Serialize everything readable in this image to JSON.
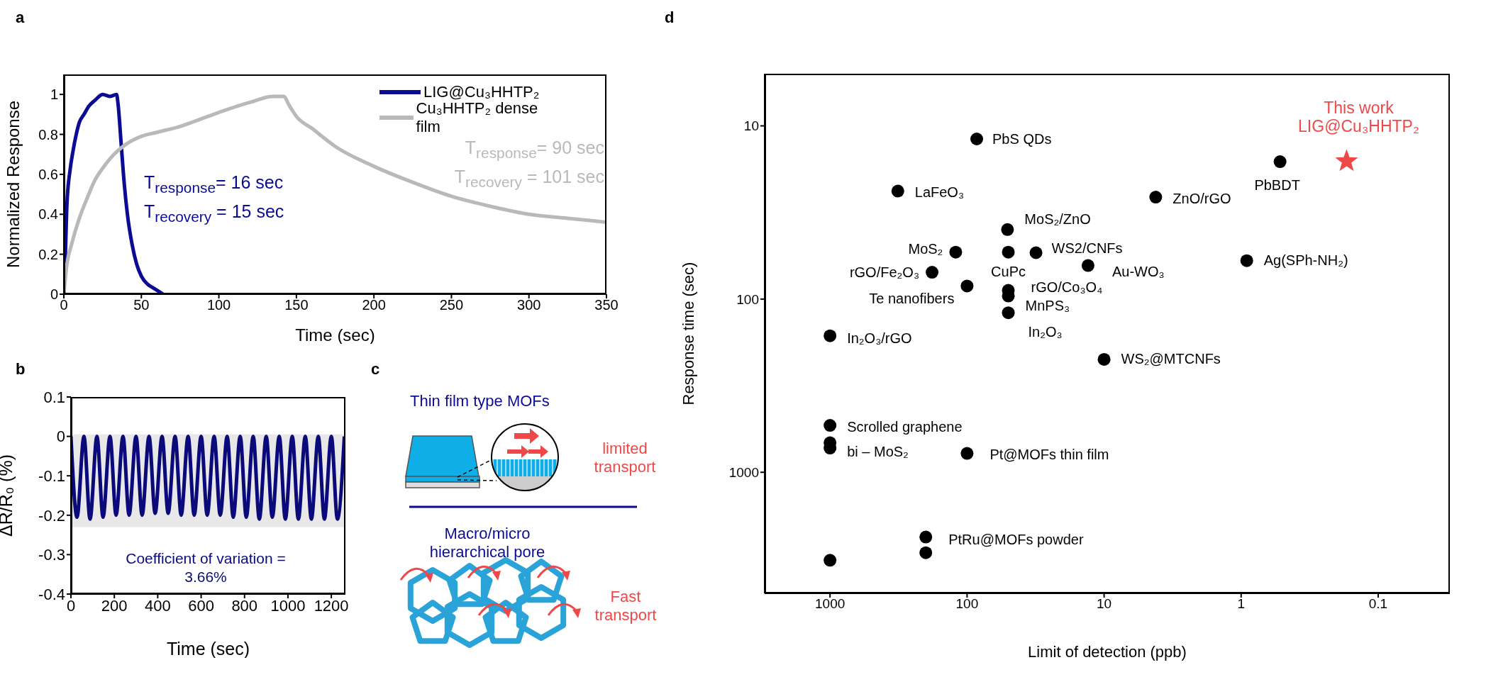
{
  "chart_data": [
    {
      "type": "line",
      "title": "a",
      "xlabel": "Time (sec)",
      "ylabel": "Normalized Response",
      "xlim": [
        0,
        350
      ],
      "xticks": [
        0,
        50,
        100,
        150,
        200,
        250,
        300,
        350
      ],
      "ylim": [
        0,
        1.1
      ],
      "yticks": [
        0,
        0.2,
        0.4,
        0.6,
        0.8,
        1
      ],
      "legend": "top right",
      "series": [
        {
          "name": "LIG@Cu₃HHTP₂",
          "color": "#0b0b94",
          "x": [
            0,
            1,
            2,
            4,
            6,
            8,
            10,
            13,
            16,
            20,
            25,
            30,
            34,
            35,
            37,
            39,
            41,
            44,
            47,
            50,
            54,
            58,
            62,
            64
          ],
          "values": [
            0,
            0.2,
            0.45,
            0.62,
            0.72,
            0.8,
            0.86,
            0.9,
            0.94,
            0.97,
            1,
            0.99,
            1,
            0.95,
            0.75,
            0.55,
            0.4,
            0.25,
            0.15,
            0.09,
            0.05,
            0.03,
            0.01,
            0
          ]
        },
        {
          "name": "Cu₃HHTP₂ dense film",
          "color": "#b9b9b9",
          "x": [
            0,
            2,
            5,
            10,
            15,
            20,
            25,
            30,
            40,
            50,
            60,
            75,
            100,
            120,
            135,
            142,
            145,
            150,
            160,
            175,
            200,
            225,
            250,
            275,
            300,
            325,
            350
          ],
          "values": [
            0,
            0.15,
            0.25,
            0.38,
            0.48,
            0.57,
            0.63,
            0.68,
            0.75,
            0.79,
            0.81,
            0.84,
            0.91,
            0.96,
            0.99,
            0.99,
            0.95,
            0.89,
            0.83,
            0.74,
            0.64,
            0.56,
            0.49,
            0.44,
            0.4,
            0.38,
            0.36
          ]
        }
      ],
      "annotations": [
        "T$_{response}$= 16 sec",
        "T$_{recovery}$ = 15 sec",
        "T$_{response}$= 90 sec",
        "T$_{recovery}$ = 101 sec"
      ]
    },
    {
      "type": "line",
      "title": "b",
      "xlabel": "Time (sec)",
      "ylabel": "ΔR/R₀ (%)",
      "xlim": [
        0,
        1265
      ],
      "xticks": [
        0,
        200,
        400,
        600,
        800,
        1000,
        1200
      ],
      "ylim": [
        -0.4,
        0.1
      ],
      "yticks": [
        -0.4,
        -0.3,
        -0.2,
        -0.1,
        0,
        0.1
      ],
      "x": [
        0,
        28,
        60,
        88,
        120,
        148,
        180,
        208,
        240,
        268,
        300,
        328,
        360,
        388,
        420,
        448,
        480,
        508,
        540,
        568,
        600,
        628,
        660,
        688,
        720,
        748,
        780,
        808,
        840,
        868,
        900,
        928,
        960,
        988,
        1020,
        1048,
        1080,
        1108,
        1140,
        1168,
        1200,
        1228,
        1260
      ],
      "series": [
        {
          "color": "#0a0a7a",
          "values": [
            0,
            -0.205,
            0,
            -0.21,
            0,
            -0.205,
            0,
            -0.2,
            0,
            -0.2,
            0,
            -0.2,
            0,
            -0.195,
            0,
            -0.195,
            0,
            -0.2,
            0,
            -0.2,
            0,
            -0.2,
            0,
            -0.2,
            0,
            -0.205,
            0,
            -0.205,
            0,
            -0.21,
            0,
            -0.205,
            0,
            -0.21,
            0,
            -0.21,
            0,
            -0.21,
            0,
            -0.21,
            0,
            -0.21,
            0
          ]
        }
      ],
      "bands": [
        {
          "axis": "y",
          "from": -0.23,
          "to": 0.005,
          "color": "#e8e8e8"
        }
      ],
      "annotations": [
        "Coefficient of variation = 3.66%"
      ]
    },
    {
      "type": "other",
      "title": "c",
      "annotations": [
        "Thin film type MOFs",
        "limited transport",
        "Macro/micro hierarchical pore",
        "Fast transport"
      ]
    },
    {
      "type": "scatter",
      "title": "d",
      "xlabel": "Limit of detection (ppb)",
      "ylabel": "Response time (sec)",
      "log": "xy",
      "xlim": [
        3000,
        0.03
      ],
      "xticks": [
        1000,
        100,
        10,
        1,
        0.1
      ],
      "ylim": [
        5000,
        5
      ],
      "yticks": [
        10,
        100,
        1000
      ],
      "series": [
        {
          "color": "#000000",
          "marker": "circle",
          "x": [
            85,
            320,
            4.2,
            0.52,
            50.7,
            121,
            50,
            31.4,
            180,
            13.1,
            0.91,
            100,
            50,
            50,
            50,
            1000,
            10,
            1000,
            1000,
            1000,
            100,
            200,
            200,
            1000
          ],
          "values": [
            11.9,
            23.8,
            25.8,
            16.1,
            39.7,
            53.6,
            53.6,
            54,
            70,
            64,
            60,
            84,
            89,
            96,
            120,
            163,
            223,
            536,
            675,
            725,
            778,
            2366,
            2912,
            3221
          ]
        },
        {
          "color": "#f04848",
          "marker": "star",
          "x": [
            0.17
          ],
          "values": [
            16
          ]
        }
      ],
      "annotations": [
        {
          "text": "PbS QDs",
          "x": 85,
          "y": 11.9
        },
        {
          "text": "LaFeO₃",
          "x": 320,
          "y": 23.8
        },
        {
          "text": "ZnO/rGO",
          "x": 4.2,
          "y": 25.8
        },
        {
          "text": "PbBDT",
          "x": 0.52,
          "y": 16.1
        },
        {
          "text": "This work LIG@Cu₃HHTP₂",
          "x": 0.17,
          "y": 16
        },
        {
          "text": "MoS₂/ZnO",
          "x": 50.7,
          "y": 39.7
        },
        {
          "text": "MoS₂",
          "x": 121,
          "y": 53.6
        },
        {
          "text": "CuPc",
          "x": 50,
          "y": 53.6
        },
        {
          "text": "WS2/CNFs",
          "x": 31.4,
          "y": 54
        },
        {
          "text": "rGO/Fe₂O₃",
          "x": 180,
          "y": 70
        },
        {
          "text": "Au-WO₃",
          "x": 13.1,
          "y": 64
        },
        {
          "text": "Ag(SPh-NH₂)",
          "x": 0.91,
          "y": 60
        },
        {
          "text": "Te nanofibers",
          "x": 100,
          "y": 84
        },
        {
          "text": "rGO/Co₃O₄",
          "x": 50,
          "y": 89
        },
        {
          "text": "MnPS₃",
          "x": 50,
          "y": 96
        },
        {
          "text": "In₂O₃",
          "x": 50,
          "y": 120
        },
        {
          "text": "In₂O₃/rGO",
          "x": 1000,
          "y": 163
        },
        {
          "text": "WS₂@MTCNFs",
          "x": 10,
          "y": 223
        },
        {
          "text": "Scrolled graphene",
          "x": 1000,
          "y": 536
        },
        {
          "text": "bi – MoS₂",
          "x": 1000,
          "y": 725
        },
        {
          "text": "Pt@MOFs thin film",
          "x": 100,
          "y": 778
        },
        {
          "text": "PtRu@MOFs powder",
          "x": 200,
          "y": 2366
        }
      ]
    }
  ]
}
